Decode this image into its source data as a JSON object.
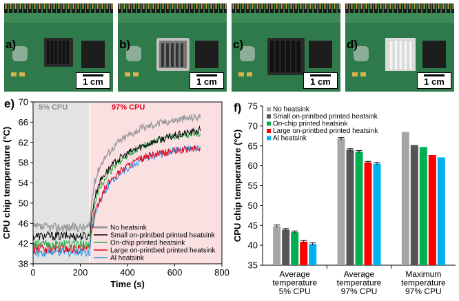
{
  "panels": [
    {
      "label": "a)",
      "heatsink": "black-none",
      "scale": "1 cm"
    },
    {
      "label": "b)",
      "heatsink": "silver-small",
      "scale": "1 cm"
    },
    {
      "label": "c)",
      "heatsink": "black-large",
      "scale": "1 cm"
    },
    {
      "label": "d)",
      "heatsink": "white-al",
      "scale": "1 cm"
    }
  ],
  "colors": {
    "no_heatsink": "#999999",
    "small": "#000000",
    "onchip": "#22aa44",
    "large": "#e3001b",
    "al": "#1e90e6",
    "bar_gray": "#a6a6a6",
    "bar_dark": "#555555",
    "bar_green": "#00b050",
    "bar_red": "#ff0000",
    "bar_blue": "#00b0f0",
    "low_cpu_bg": "#e3e3e3",
    "high_cpu_bg": "#fbe0e2"
  },
  "chart_data": [
    {
      "type": "line",
      "panel_label": "e)",
      "xlabel": "Time (s)",
      "ylabel": "CPU chip temperature (°C)",
      "xlim": [
        0,
        800
      ],
      "ylim": [
        38,
        70
      ],
      "xticks": [
        0,
        200,
        400,
        600,
        800
      ],
      "yticks": [
        38,
        42,
        46,
        50,
        54,
        58,
        62,
        66,
        70
      ],
      "regions": [
        {
          "label": "5% CPU",
          "x": [
            0,
            240
          ]
        },
        {
          "label": "97% CPU",
          "x": [
            240,
            800
          ]
        }
      ],
      "legend_position": "bottom-right",
      "series": [
        {
          "name": "No heatsink",
          "color_key": "no_heatsink",
          "x": [
            0,
            240,
            245,
            260,
            280,
            300,
            330,
            360,
            400,
            450,
            500,
            550,
            600,
            650,
            700,
            710
          ],
          "y": [
            45.2,
            45.2,
            49,
            54,
            57,
            58.8,
            60.5,
            62,
            63.3,
            64.6,
            65.4,
            66,
            66.4,
            66.8,
            67,
            67.1
          ]
        },
        {
          "name": "Small on-printbed printed heatsink",
          "color_key": "small",
          "x": [
            0,
            240,
            245,
            260,
            280,
            300,
            330,
            360,
            400,
            450,
            500,
            550,
            600,
            650,
            700,
            710
          ],
          "y": [
            43.5,
            43.5,
            46.5,
            51,
            54,
            55.6,
            57.2,
            58.6,
            59.8,
            61,
            62,
            62.7,
            63.3,
            63.8,
            64.3,
            64.5
          ]
        },
        {
          "name": "On-chip printed heatsink",
          "color_key": "onchip",
          "x": [
            0,
            240,
            245,
            260,
            280,
            300,
            330,
            360,
            400,
            450,
            500,
            550,
            600,
            650,
            700,
            710
          ],
          "y": [
            41.8,
            41.8,
            45,
            49.5,
            52.5,
            54.5,
            56.5,
            58,
            59.5,
            61,
            62,
            62.6,
            63.1,
            63.5,
            63.8,
            63.9
          ]
        },
        {
          "name": "Large on-printbed printed heatsink",
          "color_key": "large",
          "x": [
            0,
            240,
            245,
            260,
            280,
            300,
            330,
            360,
            400,
            450,
            500,
            550,
            600,
            650,
            700,
            710
          ],
          "y": [
            41,
            41,
            44,
            47.5,
            50.5,
            52.6,
            54.6,
            56,
            57.4,
            58.6,
            59.4,
            59.9,
            60.3,
            60.6,
            60.8,
            60.9
          ]
        },
        {
          "name": "Al heatsink",
          "color_key": "al",
          "x": [
            0,
            240,
            245,
            260,
            280,
            300,
            330,
            360,
            400,
            450,
            500,
            550,
            600,
            650,
            700,
            710
          ],
          "y": [
            40.3,
            40.3,
            43.5,
            47,
            50,
            52,
            54,
            55.6,
            57,
            58.3,
            59.2,
            59.8,
            60.3,
            60.6,
            60.9,
            61
          ]
        }
      ]
    },
    {
      "type": "bar",
      "panel_label": "f)",
      "ylabel": "CPU chip temperature (°C)",
      "ylim": [
        35,
        75
      ],
      "yticks": [
        35,
        40,
        45,
        50,
        55,
        60,
        65,
        70,
        75
      ],
      "categories": [
        [
          "Average",
          "temperature",
          "5% CPU"
        ],
        [
          "Average",
          "temperature",
          "97% CPU"
        ],
        [
          "Maximum",
          "temperature",
          "97% CPU"
        ]
      ],
      "legend_position": "top-left",
      "series": [
        {
          "name": "No heatsink",
          "color_key": "bar_gray",
          "values": [
            44.8,
            66.8,
            68.5
          ],
          "errors": [
            0.3,
            0.3,
            0
          ]
        },
        {
          "name": "Small on-printbed printed heatsink",
          "color_key": "bar_dark",
          "values": [
            43.9,
            64.0,
            65.2
          ],
          "errors": [
            0.3,
            0.3,
            0
          ]
        },
        {
          "name": "On-chip printed heatsink",
          "color_key": "bar_green",
          "values": [
            43.3,
            63.5,
            64.7
          ],
          "errors": [
            0.3,
            0.3,
            0
          ]
        },
        {
          "name": "Large on-printbed printed heatsink",
          "color_key": "bar_red",
          "values": [
            40.9,
            60.8,
            62.7
          ],
          "errors": [
            0.3,
            0.3,
            0
          ]
        },
        {
          "name": "Al heatsink",
          "color_key": "bar_blue",
          "values": [
            40.3,
            60.5,
            62.1
          ],
          "errors": [
            0.3,
            0.3,
            0
          ]
        }
      ]
    }
  ]
}
